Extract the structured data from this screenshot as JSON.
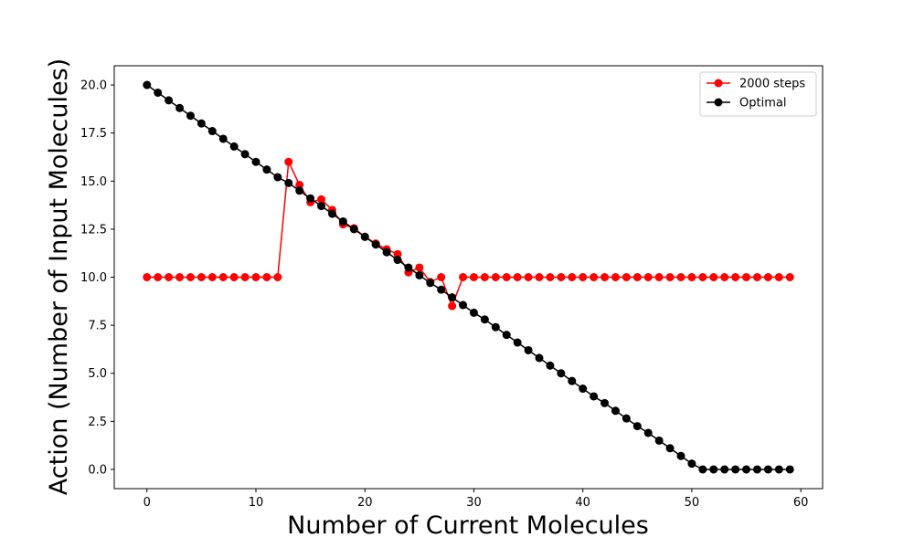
{
  "chart_data": {
    "type": "line",
    "title": "",
    "xlabel": "Number of Current Molecules",
    "ylabel": "Action (Number of Input Molecules)",
    "xlim": [
      -3,
      62
    ],
    "ylim": [
      -1.0,
      21.0
    ],
    "x_ticks": [
      0,
      10,
      20,
      30,
      40,
      50,
      60
    ],
    "y_ticks": [
      0.0,
      2.5,
      5.0,
      7.5,
      10.0,
      12.5,
      15.0,
      17.5,
      20.0
    ],
    "x_tick_labels": [
      "0",
      "10",
      "20",
      "30",
      "40",
      "50",
      "60"
    ],
    "y_tick_labels": [
      "0.0",
      "2.5",
      "5.0",
      "7.5",
      "10.0",
      "12.5",
      "15.0",
      "17.5",
      "20.0"
    ],
    "grid": false,
    "legend_position": "top-right",
    "x": [
      0,
      1,
      2,
      3,
      4,
      5,
      6,
      7,
      8,
      9,
      10,
      11,
      12,
      13,
      14,
      15,
      16,
      17,
      18,
      19,
      20,
      21,
      22,
      23,
      24,
      25,
      26,
      27,
      28,
      29,
      30,
      31,
      32,
      33,
      34,
      35,
      36,
      37,
      38,
      39,
      40,
      41,
      42,
      43,
      44,
      45,
      46,
      47,
      48,
      49,
      50,
      51,
      52,
      53,
      54,
      55,
      56,
      57,
      58,
      59
    ],
    "series": [
      {
        "name": "2000 steps",
        "color": "#ff0000",
        "marker": "circle",
        "values": [
          10,
          10,
          10,
          10,
          10,
          10,
          10,
          10,
          10,
          10,
          10,
          10,
          10,
          16.0,
          14.8,
          13.9,
          14.05,
          13.5,
          12.75,
          12.55,
          12.1,
          11.75,
          11.45,
          11.2,
          10.25,
          10.5,
          9.75,
          10.0,
          8.5,
          10,
          10,
          10,
          10,
          10,
          10,
          10,
          10,
          10,
          10,
          10,
          10,
          10,
          10,
          10,
          10,
          10,
          10,
          10,
          10,
          10,
          10,
          10,
          10,
          10,
          10,
          10,
          10,
          10,
          10,
          10
        ]
      },
      {
        "name": "Optimal",
        "color": "#000000",
        "marker": "circle",
        "values": [
          20.0,
          19.6,
          19.2,
          18.8,
          18.4,
          18.0,
          17.6,
          17.2,
          16.8,
          16.4,
          16.0,
          15.6,
          15.2,
          14.9,
          14.5,
          14.1,
          13.7,
          13.3,
          12.9,
          12.5,
          12.1,
          11.7,
          11.3,
          10.9,
          10.5,
          10.1,
          9.7,
          9.35,
          8.95,
          8.55,
          8.15,
          7.8,
          7.4,
          7.0,
          6.6,
          6.2,
          5.8,
          5.4,
          5.0,
          4.6,
          4.2,
          3.8,
          3.45,
          3.05,
          2.65,
          2.25,
          1.9,
          1.5,
          1.1,
          0.7,
          0.3,
          0,
          0,
          0,
          0,
          0,
          0,
          0,
          0,
          0
        ]
      }
    ]
  }
}
